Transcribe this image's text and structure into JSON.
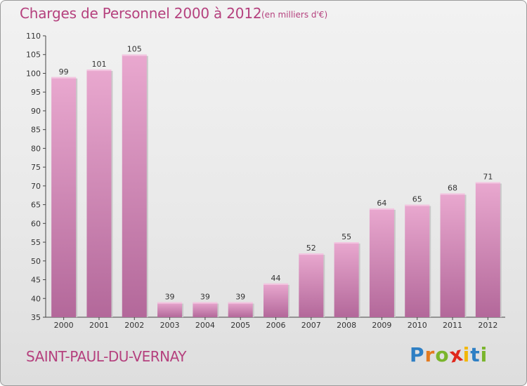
{
  "header": {
    "title": "Charges de Personnel 2000 à 2012",
    "subtitle": "(en milliers d'€)"
  },
  "footer": {
    "commune": "SAINT-PAUL-DU-VERNAY",
    "logo": {
      "letters": [
        "P",
        "r",
        "o",
        "x",
        "i",
        "t",
        "i"
      ],
      "colors": [
        "#2e7fc4",
        "#e37a1f",
        "#7ab52c",
        "#e0281c",
        "#f2b705",
        "#2e7fc4",
        "#7ab52c"
      ]
    }
  },
  "colors": {
    "bar_light": "#e9a8cf",
    "bar_dark": "#b3689a",
    "text_accent": "#b5417e"
  },
  "chart_data": {
    "type": "bar",
    "categories": [
      "2000",
      "2001",
      "2002",
      "2003",
      "2004",
      "2005",
      "2006",
      "2007",
      "2008",
      "2009",
      "2010",
      "2011",
      "2012"
    ],
    "values": [
      99,
      101,
      105,
      39,
      39,
      39,
      44,
      52,
      55,
      64,
      65,
      68,
      71
    ],
    "title": "Charges de Personnel 2000 à 2012",
    "subtitle": "(en milliers d'€)",
    "ylim": [
      35,
      110
    ],
    "yticks": [
      35,
      40,
      45,
      50,
      55,
      60,
      65,
      70,
      75,
      80,
      85,
      90,
      95,
      100,
      105,
      110
    ],
    "grid": false,
    "legend": "none"
  }
}
